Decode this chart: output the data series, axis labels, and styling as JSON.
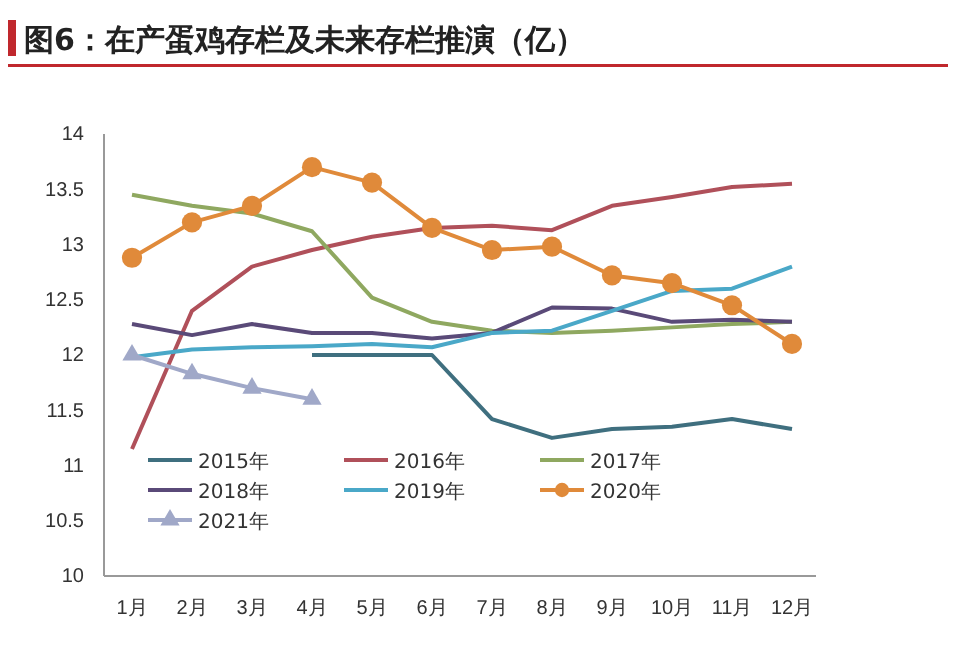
{
  "chart_data": {
    "type": "line",
    "title": "图6：在产蛋鸡存栏及未来存栏推演（亿）",
    "categories": [
      "1月",
      "2月",
      "3月",
      "4月",
      "5月",
      "6月",
      "7月",
      "8月",
      "9月",
      "10月",
      "11月",
      "12月"
    ],
    "ylim": [
      10,
      14
    ],
    "yticks": [
      10,
      {
        "value": 10.5,
        "label": "10.5"
      },
      11,
      {
        "value": 11.5,
        "label": "11.5"
      },
      12,
      {
        "value": 12.5,
        "label": "12.5"
      },
      13,
      {
        "value": 13.5,
        "label": "13.5"
      },
      14
    ],
    "grid": false,
    "legend": "bottom left",
    "series": [
      {
        "name": "2015年",
        "color": "#3f6f7f",
        "marker": "none",
        "values": [
          null,
          null,
          null,
          12.0,
          12.0,
          12.0,
          11.42,
          11.25,
          11.33,
          11.35,
          11.42,
          11.33
        ]
      },
      {
        "name": "2016年",
        "color": "#b0505a",
        "marker": "none",
        "values": [
          11.15,
          12.4,
          12.8,
          12.95,
          13.07,
          13.15,
          13.17,
          13.13,
          13.35,
          13.43,
          13.52,
          13.55
        ]
      },
      {
        "name": "2017年",
        "color": "#8fa860",
        "marker": "none",
        "values": [
          13.45,
          13.35,
          13.28,
          13.12,
          12.52,
          12.3,
          12.22,
          12.2,
          12.22,
          12.25,
          12.28,
          12.3
        ]
      },
      {
        "name": "2018年",
        "color": "#5a4a78",
        "marker": "none",
        "values": [
          12.28,
          12.18,
          12.28,
          12.2,
          12.2,
          12.15,
          12.2,
          12.43,
          12.42,
          12.3,
          12.32,
          12.3
        ]
      },
      {
        "name": "2019年",
        "color": "#4aa8c8",
        "marker": "none",
        "values": [
          11.98,
          12.05,
          12.07,
          12.08,
          12.1,
          12.07,
          12.2,
          12.22,
          12.4,
          12.58,
          12.6,
          12.8
        ]
      },
      {
        "name": "2020年",
        "color": "#e08a3a",
        "marker": "circle",
        "values": [
          12.88,
          13.2,
          13.35,
          13.7,
          13.56,
          13.15,
          12.95,
          12.98,
          12.72,
          12.65,
          12.45,
          12.1
        ]
      },
      {
        "name": "2021年",
        "color": "#a0a8c8",
        "marker": "triangle",
        "values": [
          12.0,
          11.83,
          11.7,
          11.6,
          null,
          null,
          null,
          null,
          null,
          null,
          null,
          null
        ]
      }
    ]
  }
}
